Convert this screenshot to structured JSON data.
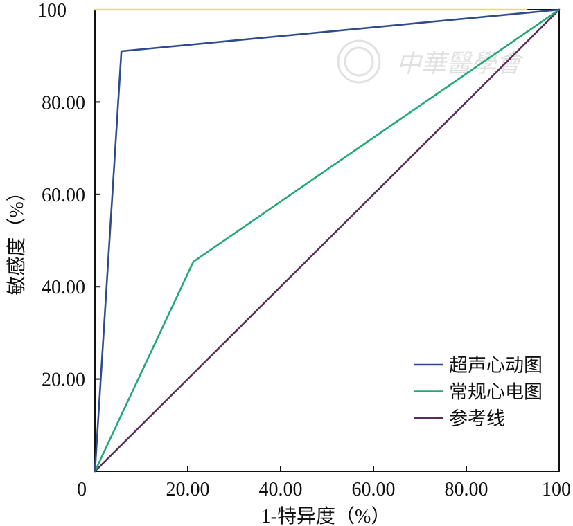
{
  "chart_data": {
    "type": "line",
    "title": "",
    "xlabel": "1-特异度（%）",
    "ylabel": "敏感度（%）",
    "xlim": [
      0,
      100
    ],
    "ylim": [
      0,
      100
    ],
    "grid": false,
    "legend_position": "bottom-right",
    "x_ticks": [
      {
        "value": 0,
        "label": "0"
      },
      {
        "value": 20,
        "label": "20.00"
      },
      {
        "value": 40,
        "label": "40.00"
      },
      {
        "value": 60,
        "label": "60.00"
      },
      {
        "value": 80,
        "label": "80.00"
      },
      {
        "value": 100,
        "label": "100"
      }
    ],
    "y_ticks": [
      {
        "value": 20,
        "label": "20.00"
      },
      {
        "value": 40,
        "label": "40.00"
      },
      {
        "value": 60,
        "label": "60.00"
      },
      {
        "value": 80,
        "label": "80.00"
      },
      {
        "value": 100,
        "label": "100"
      }
    ],
    "series": [
      {
        "name": "超声心动图",
        "color": "#2d4c8e",
        "points": [
          [
            0,
            0
          ],
          [
            5.7,
            91
          ],
          [
            100,
            100
          ]
        ]
      },
      {
        "name": "常规心电图",
        "color": "#21a873",
        "points": [
          [
            0,
            0
          ],
          [
            21.2,
            45.4
          ],
          [
            100,
            100
          ]
        ]
      },
      {
        "name": "参考线",
        "color": "#5a2c5c",
        "points": [
          [
            0,
            0
          ],
          [
            100,
            100
          ]
        ]
      },
      {
        "color": "#e3e35a",
        "points": [
          [
            0,
            100
          ],
          [
            93,
            100
          ]
        ]
      }
    ]
  },
  "watermark": {
    "text": "中華醫學會"
  }
}
